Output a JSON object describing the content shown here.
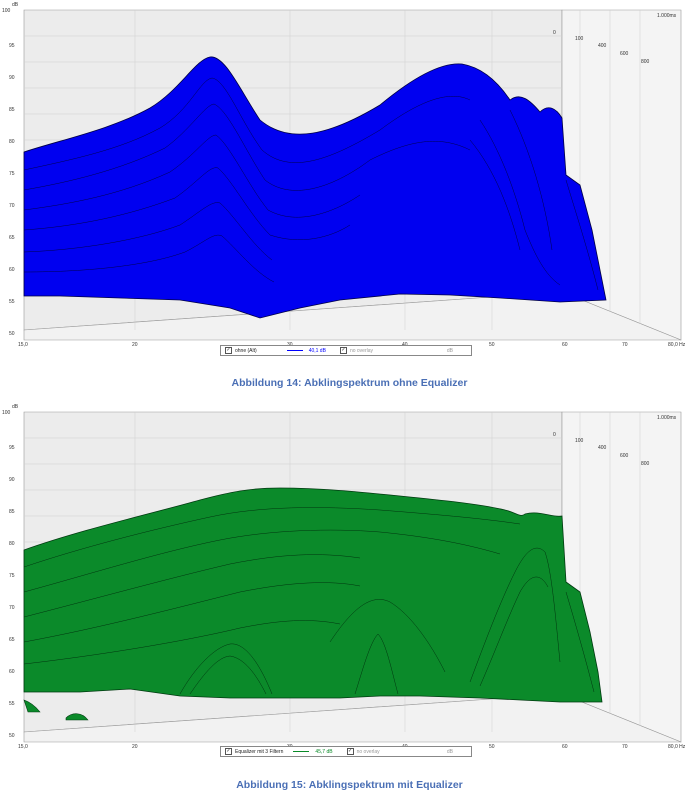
{
  "figures": [
    {
      "caption": "Abbildung 14: Abklingspektrum ohne Equalizer",
      "fill_color": "#0000ff",
      "y_unit": "dB",
      "y_ticks": [
        "100",
        "95",
        "90",
        "85",
        "80",
        "75",
        "70",
        "65",
        "60",
        "55",
        "50"
      ],
      "x_ticks": [
        "15,0",
        "20",
        "30",
        "40",
        "50",
        "60",
        "70",
        "80,0 Hz"
      ],
      "time_ticks": [
        "0",
        "100",
        "400",
        "600",
        "800",
        "1.000ms"
      ],
      "legend": {
        "trace_label": "ohne (Alt)",
        "value": "40,1 dB",
        "overlay_label": "no overlay",
        "unit": "dB"
      }
    },
    {
      "caption": "Abbildung 15: Abklingspektrum mit Equalizer",
      "fill_color": "#0a8a28",
      "y_unit": "dB",
      "y_ticks": [
        "100",
        "95",
        "90",
        "85",
        "80",
        "75",
        "70",
        "65",
        "60",
        "55",
        "50"
      ],
      "x_ticks": [
        "15,0",
        "20",
        "30",
        "40",
        "50",
        "60",
        "70",
        "80,0 Hz"
      ],
      "time_ticks": [
        "0",
        "100",
        "400",
        "600",
        "800",
        "1.000ms"
      ],
      "legend": {
        "trace_label": "Equalizer mit 3 Filtern",
        "value": "45,7 dB",
        "overlay_label": "no overlay",
        "unit": "dB"
      }
    }
  ]
}
